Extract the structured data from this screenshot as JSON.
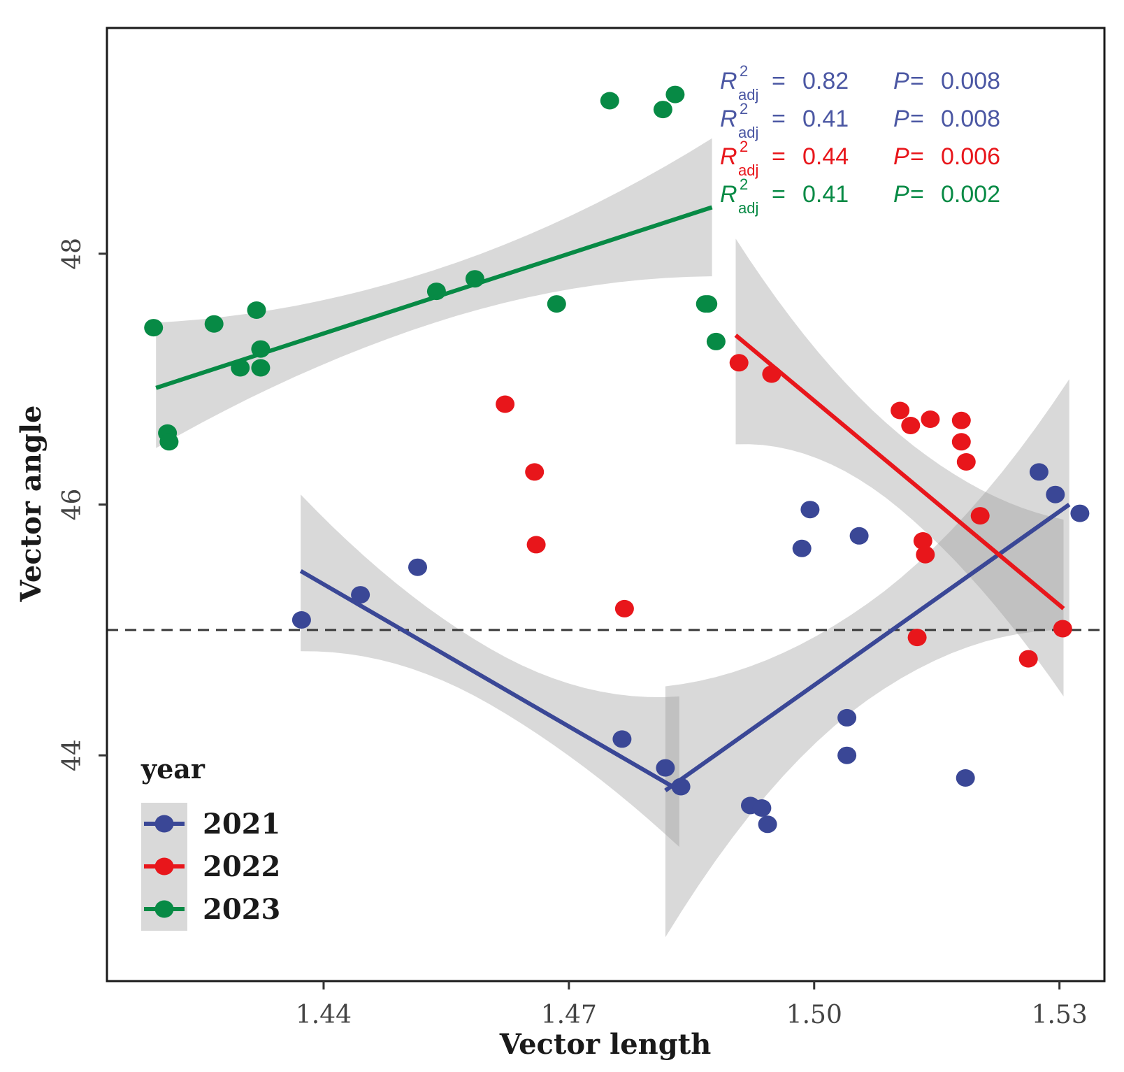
{
  "chart_data": {
    "type": "scatter",
    "xlabel": "Vector length",
    "ylabel": "Vector angle",
    "xlim": [
      1.4135,
      1.5355
    ],
    "ylim": [
      42.2,
      49.8
    ],
    "x_ticks": [
      {
        "value": 1.44,
        "label": "1.44"
      },
      {
        "value": 1.47,
        "label": "1.47"
      },
      {
        "value": 1.5,
        "label": "1.50"
      },
      {
        "value": 1.53,
        "label": "1.53"
      }
    ],
    "y_ticks": [
      {
        "value": 44,
        "label": "44"
      },
      {
        "value": 46,
        "label": "46"
      },
      {
        "value": 48,
        "label": "48"
      }
    ],
    "reference_line": {
      "y": 45,
      "style": "dashed"
    },
    "grid": false,
    "legend": {
      "title": "year",
      "position": "bottom-left",
      "entries": [
        {
          "label": "2021",
          "color": "#3a4796"
        },
        {
          "label": "2022",
          "color": "#e8161b"
        },
        {
          "label": "2023",
          "color": "#078a45"
        }
      ]
    },
    "annotations": [
      {
        "r2": "0.82",
        "p": "0.008",
        "color": "#4b57a3"
      },
      {
        "r2": "0.41",
        "p": "0.008",
        "color": "#4b57a3"
      },
      {
        "r2": "0.44",
        "p": "0.006",
        "color": "#e8161b"
      },
      {
        "r2": "0.41",
        "p": "0.002",
        "color": "#078a45"
      }
    ],
    "annotation_labels": {
      "r": "R",
      "sup": "2",
      "sub": "adj",
      "eq": " = ",
      "p": "P"
    },
    "series": [
      {
        "name": "2021",
        "color": "#3a4796",
        "points": [
          [
            1.4373,
            45.08
          ],
          [
            1.4445,
            45.28
          ],
          [
            1.4515,
            45.5
          ],
          [
            1.4765,
            44.13
          ],
          [
            1.4818,
            43.9
          ],
          [
            1.4837,
            43.75
          ],
          [
            1.4922,
            43.6
          ],
          [
            1.4936,
            43.58
          ],
          [
            1.4943,
            43.45
          ],
          [
            1.4985,
            45.65
          ],
          [
            1.4995,
            45.96
          ],
          [
            1.504,
            44.3
          ],
          [
            1.504,
            44.0
          ],
          [
            1.5055,
            45.75
          ],
          [
            1.5185,
            43.82
          ],
          [
            1.5275,
            46.26
          ],
          [
            1.5295,
            46.08
          ],
          [
            1.5325,
            45.93
          ]
        ],
        "fits": [
          {
            "x": [
              1.4372,
              1.4835
            ],
            "y": [
              45.47,
              43.72
            ],
            "band_upper": [
              46.08,
              44.47
            ],
            "band_lower": [
              44.83,
              43.27
            ]
          },
          {
            "x": [
              1.4818,
              1.5312
            ],
            "y": [
              43.72,
              46.0
            ],
            "band_upper": [
              44.55,
              47.0
            ],
            "band_lower": [
              42.55,
              45.0
            ]
          }
        ]
      },
      {
        "name": "2022",
        "color": "#e8161b",
        "points": [
          [
            1.4622,
            46.8
          ],
          [
            1.4658,
            46.26
          ],
          [
            1.466,
            45.68
          ],
          [
            1.4768,
            45.17
          ],
          [
            1.4908,
            47.13
          ],
          [
            1.4948,
            47.04
          ],
          [
            1.5105,
            46.75
          ],
          [
            1.5118,
            46.63
          ],
          [
            1.5133,
            45.71
          ],
          [
            1.5136,
            45.6
          ],
          [
            1.5126,
            44.94
          ],
          [
            1.5142,
            46.68
          ],
          [
            1.518,
            46.67
          ],
          [
            1.518,
            46.5
          ],
          [
            1.5186,
            46.34
          ],
          [
            1.5203,
            45.91
          ],
          [
            1.5262,
            44.77
          ],
          [
            1.5304,
            45.01
          ]
        ],
        "fits": [
          {
            "x": [
              1.4904,
              1.5305
            ],
            "y": [
              47.35,
              45.17
            ],
            "band_upper": [
              48.12,
              45.88
            ],
            "band_lower": [
              46.48,
              44.47
            ]
          }
        ]
      },
      {
        "name": "2023",
        "color": "#078a45",
        "points": [
          [
            1.4192,
            47.41
          ],
          [
            1.4209,
            46.57
          ],
          [
            1.4211,
            46.5
          ],
          [
            1.4266,
            47.44
          ],
          [
            1.4298,
            47.09
          ],
          [
            1.4318,
            47.55
          ],
          [
            1.4323,
            47.24
          ],
          [
            1.4323,
            47.09
          ],
          [
            1.4538,
            47.7
          ],
          [
            1.4585,
            47.8
          ],
          [
            1.4685,
            47.6
          ],
          [
            1.475,
            49.22
          ],
          [
            1.4815,
            49.15
          ],
          [
            1.483,
            49.27
          ],
          [
            1.4867,
            47.6
          ],
          [
            1.487,
            47.6
          ],
          [
            1.488,
            47.3
          ]
        ],
        "fits": [
          {
            "x": [
              1.4195,
              1.4875
            ],
            "y": [
              46.93,
              48.37
            ],
            "band_upper": [
              47.45,
              48.92
            ],
            "band_lower": [
              46.45,
              47.82
            ]
          }
        ]
      }
    ]
  }
}
